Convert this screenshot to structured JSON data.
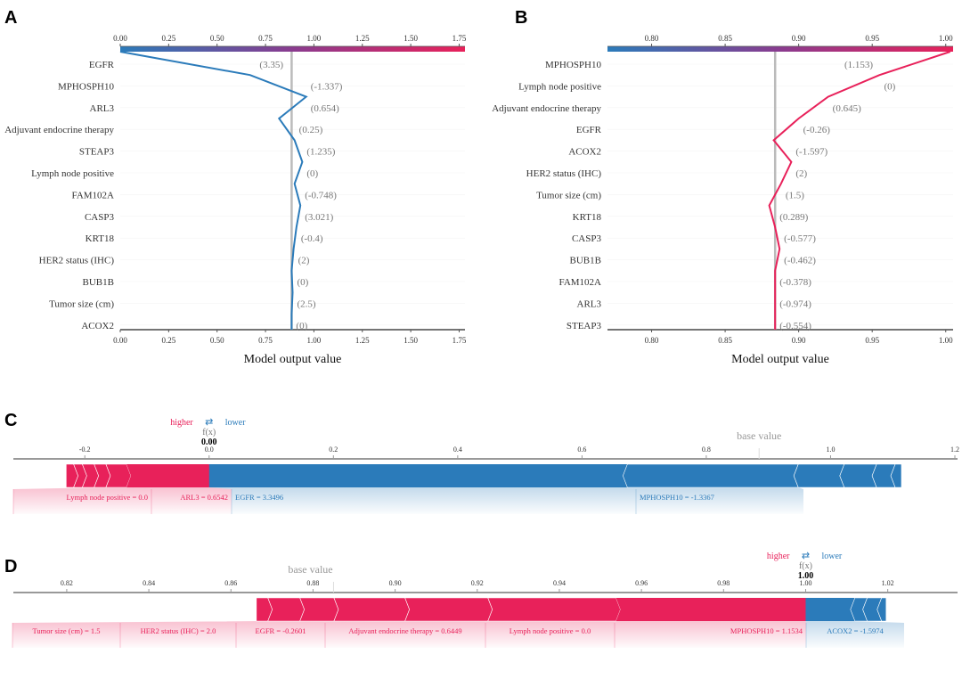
{
  "colors": {
    "blue": "#2b7bba",
    "red": "#e8215a",
    "purple": "#8a3b8f",
    "base_line": "#bbbbbb"
  },
  "chart_data": [
    {
      "panel": "A",
      "type": "line",
      "subtype": "shap-decision-plot",
      "xlabel": "Model output value",
      "xlim": [
        0.0,
        1.78
      ],
      "xticks": [
        "0.00",
        "0.25",
        "0.50",
        "0.75",
        "1.00",
        "1.25",
        "1.50",
        "1.75"
      ],
      "base_value": 0.885,
      "line_color": "#2b7bba",
      "features": [
        "EGFR",
        "MPHOSPH10",
        "ARL3",
        "Adjuvant endocrine therapy",
        "STEAP3",
        "Lymph node positive",
        "FAM102A",
        "CASP3",
        "KRT18",
        "HER2 status (IHC)",
        "BUB1B",
        "Tumor size (cm)",
        "ACOX2"
      ],
      "feature_values": [
        "(3.35)",
        "(-1.337)",
        "(0.654)",
        "(0.25)",
        "(1.235)",
        "(0)",
        "(-0.748)",
        "(3.021)",
        "(-0.4)",
        "(2)",
        "(0)",
        "(2.5)",
        "(0)"
      ],
      "cumulative_output": [
        0.0,
        0.67,
        0.96,
        0.82,
        0.9,
        0.94,
        0.9,
        0.93,
        0.91,
        0.895,
        0.885,
        0.89,
        0.885,
        0.885
      ]
    },
    {
      "panel": "B",
      "type": "line",
      "subtype": "shap-decision-plot",
      "xlabel": "Model output value",
      "xlim": [
        0.77,
        1.005
      ],
      "xticks": [
        "0.80",
        "0.85",
        "0.90",
        "0.95",
        "1.00"
      ],
      "base_value": 0.884,
      "line_color": "#e8215a",
      "features": [
        "MPHOSPH10",
        "Lymph node positive",
        "Adjuvant endocrine therapy",
        "EGFR",
        "ACOX2",
        "HER2 status (IHC)",
        "Tumor size (cm)",
        "KRT18",
        "CASP3",
        "BUB1B",
        "FAM102A",
        "ARL3",
        "STEAP3"
      ],
      "feature_values": [
        "(1.153)",
        "(0)",
        "(0.645)",
        "(-0.26)",
        "(-1.597)",
        "(2)",
        "(1.5)",
        "(0.289)",
        "(-0.577)",
        "(-0.462)",
        "(-0.378)",
        "(-0.974)",
        "(-0.554)"
      ],
      "cumulative_output": [
        1.003,
        0.955,
        0.92,
        0.9,
        0.883,
        0.895,
        0.888,
        0.88,
        0.884,
        0.887,
        0.884,
        0.884,
        0.884,
        0.884
      ]
    },
    {
      "panel": "C",
      "type": "bar",
      "subtype": "shap-force-plot",
      "xlim": [
        -0.315,
        1.2
      ],
      "xticks": [
        "-0.2",
        "0.0",
        "0.2",
        "0.4",
        "0.6",
        "0.8",
        "1.0",
        "1.2"
      ],
      "higher_label": "higher",
      "lower_label": "lower",
      "arrows": "⇄",
      "fx_label": "f(x)",
      "fx_value": "0.00",
      "fx": 0.0,
      "base_label": "base value",
      "base_value": 0.885,
      "positive": [
        {
          "from": -0.23,
          "to": -0.218,
          "label": ""
        },
        {
          "from": -0.218,
          "to": -0.204,
          "label": ""
        },
        {
          "from": -0.204,
          "to": -0.185,
          "label": ""
        },
        {
          "from": -0.185,
          "to": -0.166,
          "label": ""
        },
        {
          "from": -0.166,
          "to": -0.133,
          "label": "Lymph node positive = 0.0"
        },
        {
          "from": -0.133,
          "to": 0.0,
          "label": "ARL3 = 0.6542"
        }
      ],
      "negative": [
        {
          "from": 0.0,
          "to": 0.673,
          "label": "EGFR = 3.3496"
        },
        {
          "from": 0.673,
          "to": 0.948,
          "label": "MPHOSPH10 = -1.3367"
        },
        {
          "from": 0.948,
          "to": 1.022,
          "label": ""
        },
        {
          "from": 1.022,
          "to": 1.074,
          "label": ""
        },
        {
          "from": 1.074,
          "to": 1.104,
          "label": ""
        },
        {
          "from": 1.104,
          "to": 1.114,
          "label": ""
        }
      ]
    },
    {
      "panel": "D",
      "type": "bar",
      "subtype": "shap-force-plot",
      "xlim": [
        0.807,
        1.037
      ],
      "xticks": [
        "0.82",
        "0.84",
        "0.86",
        "0.88",
        "0.90",
        "0.92",
        "0.94",
        "0.96",
        "0.98",
        "1.00",
        "1.02"
      ],
      "higher_label": "higher",
      "lower_label": "lower",
      "arrows": "⇄",
      "fx_label": "f(x)",
      "fx_value": "1.00",
      "fx": 1.0,
      "base_label": "base value",
      "base_value": 0.885,
      "positive": [
        {
          "from": 0.8662,
          "to": 0.869,
          "label": ""
        },
        {
          "from": 0.869,
          "to": 0.8768,
          "label": "Tumor size (cm) = 1.5"
        },
        {
          "from": 0.8768,
          "to": 0.8851,
          "label": "HER2 status (IHC) = 2.0"
        },
        {
          "from": 0.8851,
          "to": 0.9024,
          "label": "EGFR = -0.2601"
        },
        {
          "from": 0.9024,
          "to": 0.9226,
          "label": "Adjuvant endocrine therapy = 0.6449"
        },
        {
          "from": 0.9226,
          "to": 0.9538,
          "label": "Lymph node positive = 0.0"
        },
        {
          "from": 0.9538,
          "to": 1.0,
          "label": "MPHOSPH10 = 1.1534"
        }
      ],
      "negative": [
        {
          "from": 1.0,
          "to": 1.012,
          "label": "ACOX2 = -1.5974"
        },
        {
          "from": 1.012,
          "to": 1.015,
          "label": ""
        },
        {
          "from": 1.015,
          "to": 1.0185,
          "label": ""
        },
        {
          "from": 1.0185,
          "to": 1.0196,
          "label": ""
        }
      ]
    }
  ]
}
